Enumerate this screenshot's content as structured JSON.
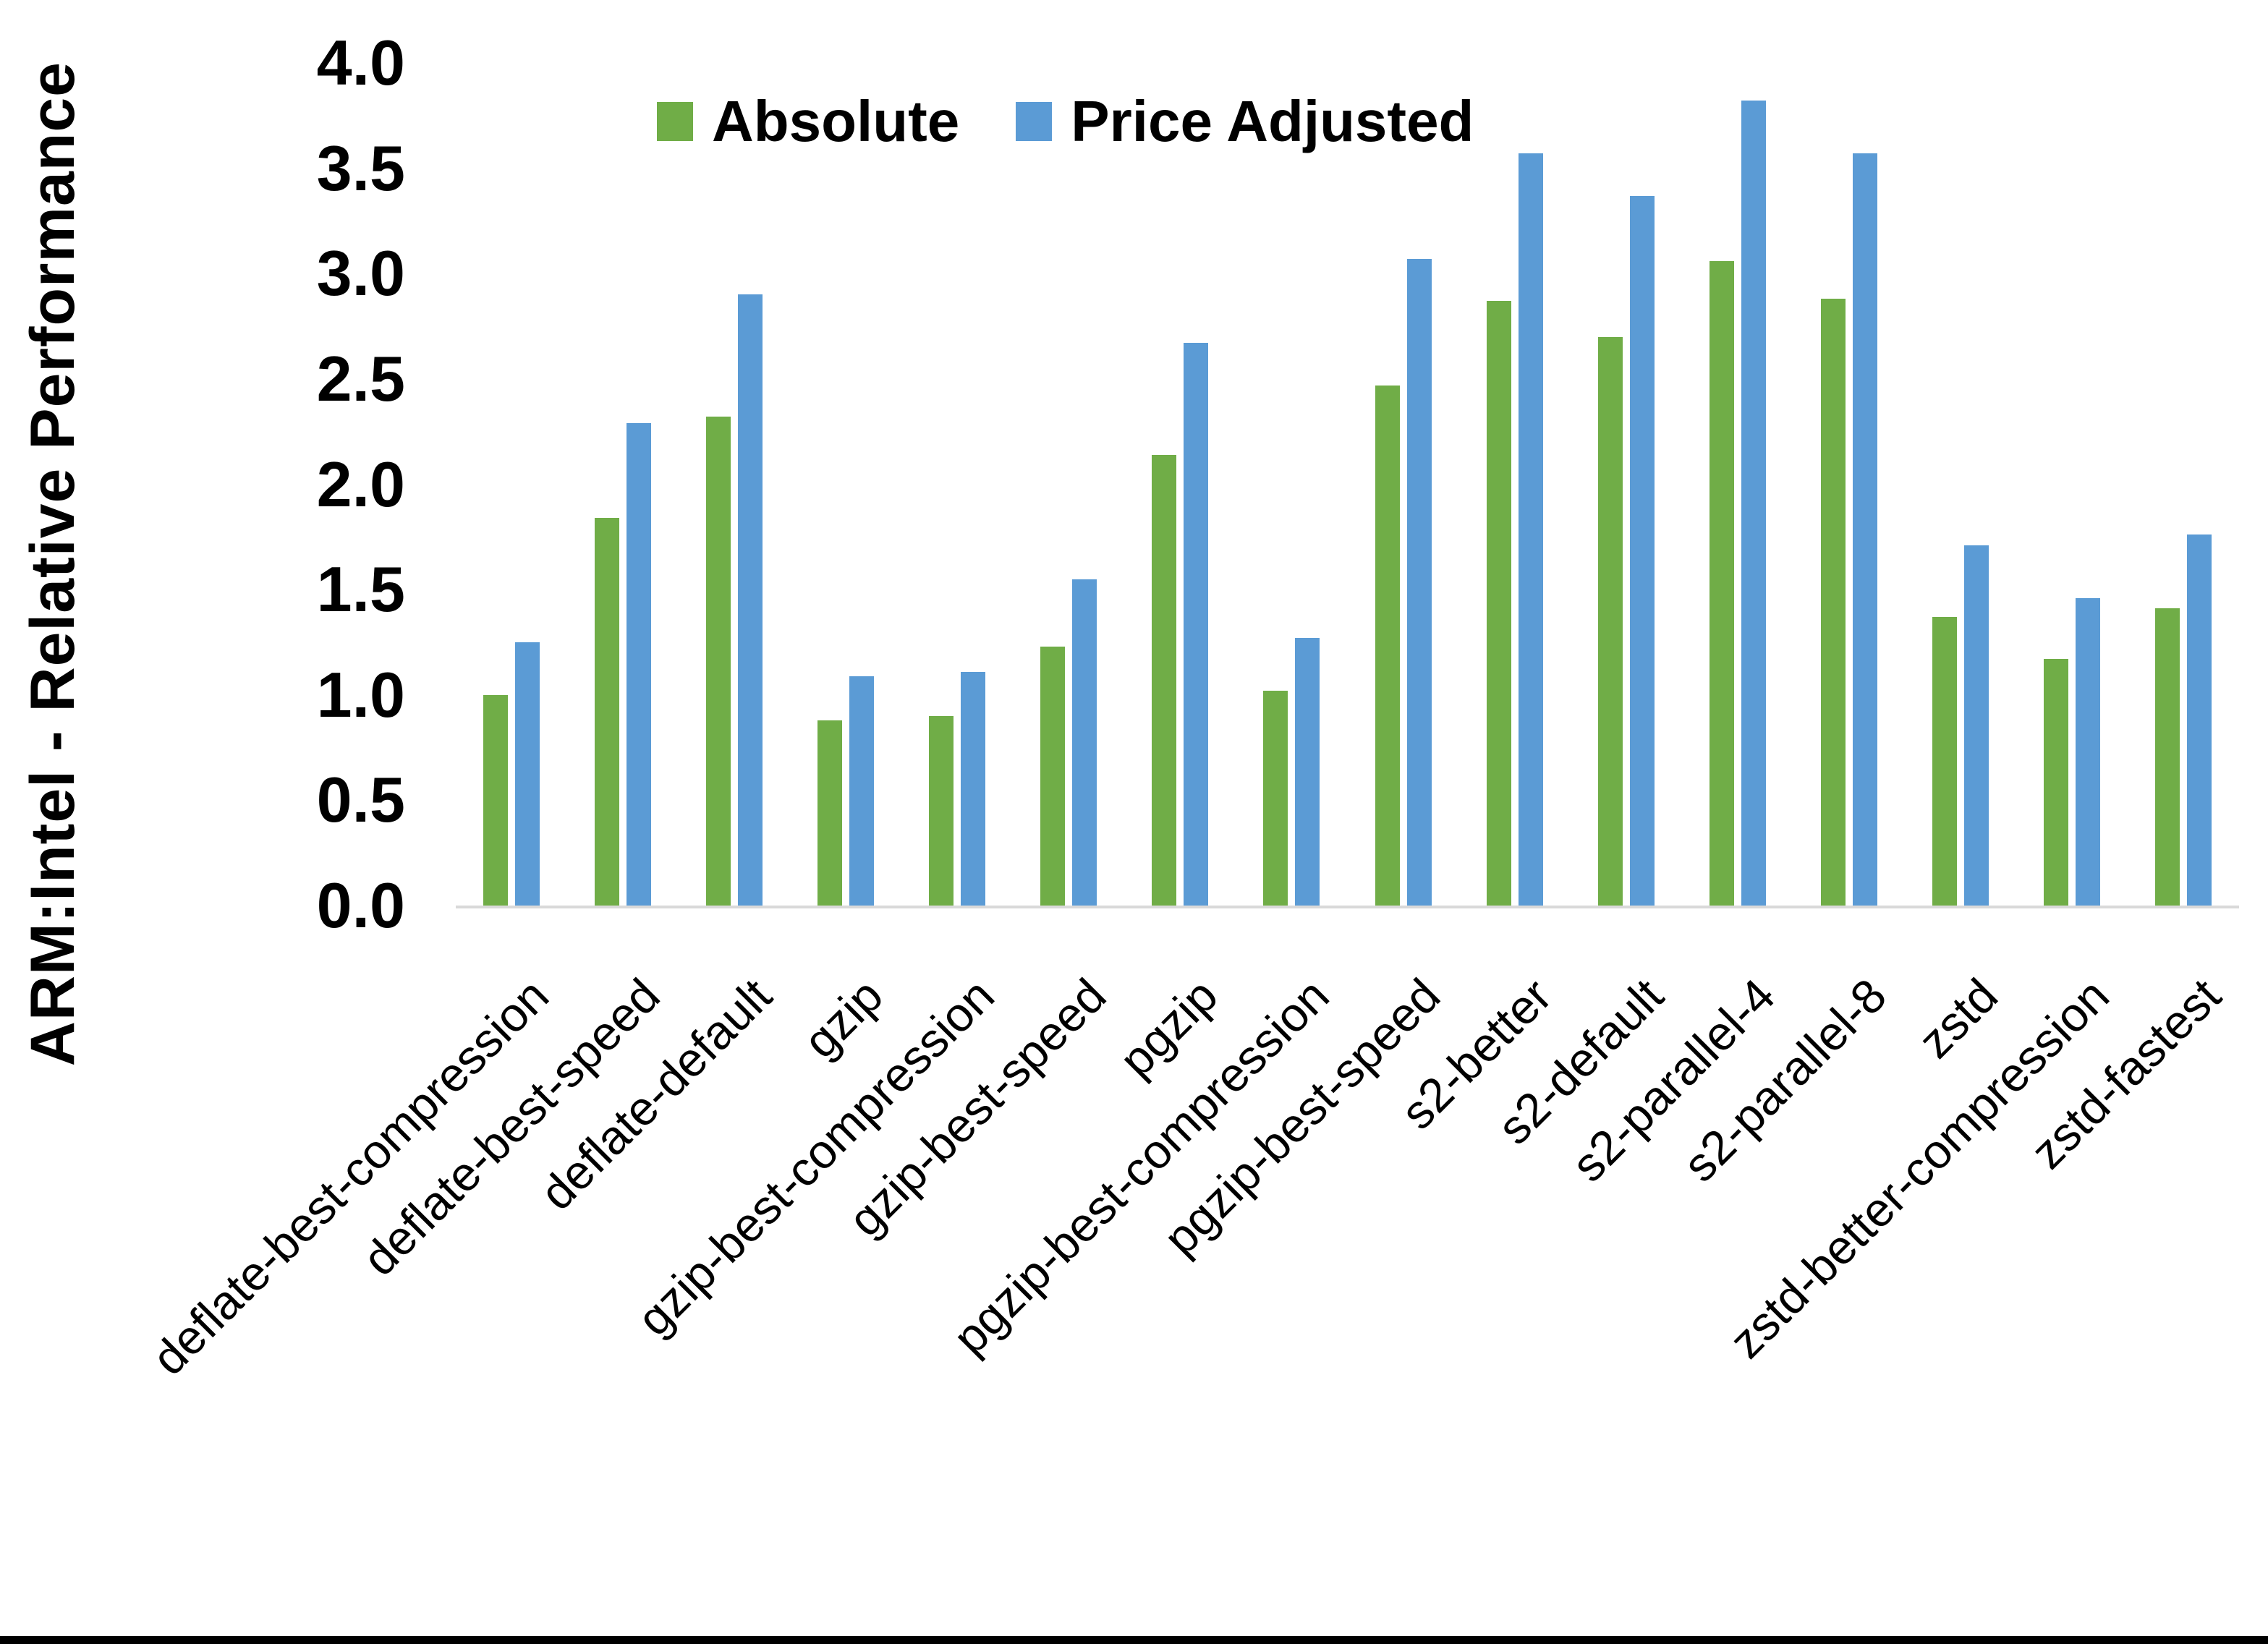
{
  "legend": {
    "absolute_label": "Absolute",
    "price_adjusted_label": "Price Adjusted"
  },
  "colors": {
    "absolute": "#70AD47",
    "price_adjusted": "#5B9BD5",
    "axis_line": "#d9d9d9",
    "text": "#000000"
  },
  "chart_data": {
    "type": "bar",
    "title": "",
    "xlabel": "",
    "ylabel": "ARM:Intel - Relative Performance",
    "ylim": [
      0.0,
      4.0
    ],
    "ytick_step": 0.5,
    "grid": false,
    "legend_position": "top",
    "categories": [
      "deflate-best-compression",
      "deflate-best-speed",
      "deflate-default",
      "gzip",
      "gzip-best-compression",
      "gzip-best-speed",
      "pgzip",
      "pgzip-best-compression",
      "pgzip-best-speed",
      "s2-better",
      "s2-default",
      "s2-parallel-4",
      "s2-parallel-8",
      "zstd",
      "zstd-better-compression",
      "zstd-fastest"
    ],
    "series": [
      {
        "name": "Absolute",
        "color": "#70AD47",
        "values": [
          1.0,
          1.84,
          2.32,
          0.88,
          0.9,
          1.23,
          2.14,
          1.02,
          2.47,
          2.87,
          2.7,
          3.06,
          2.88,
          1.37,
          1.17,
          1.41
        ]
      },
      {
        "name": "Price Adjusted",
        "color": "#5B9BD5",
        "values": [
          1.25,
          2.29,
          2.9,
          1.09,
          1.11,
          1.55,
          2.67,
          1.27,
          3.07,
          3.57,
          3.37,
          3.82,
          3.57,
          1.71,
          1.46,
          1.76
        ]
      }
    ]
  }
}
